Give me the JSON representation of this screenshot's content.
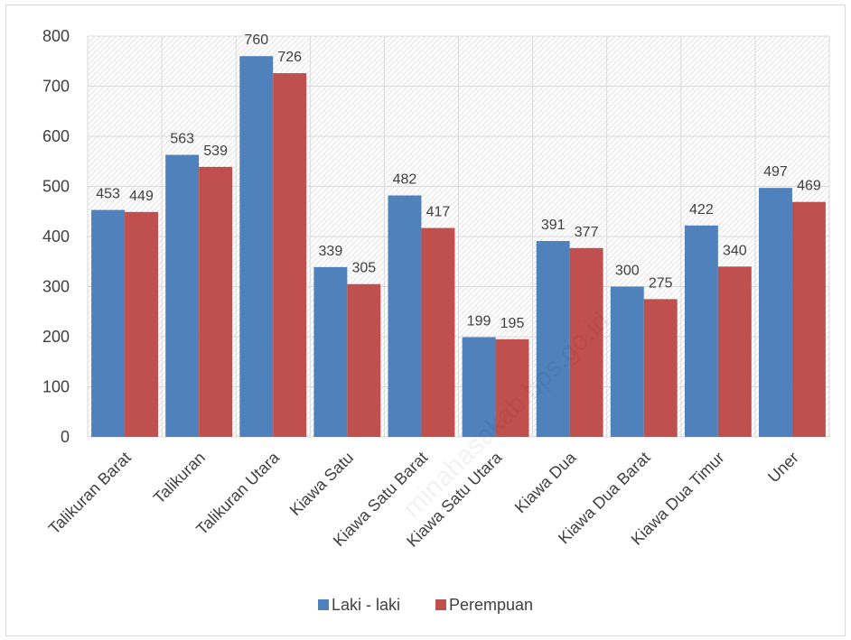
{
  "chart_data": {
    "type": "bar",
    "categories": [
      "Talikuran Barat",
      "Talikuran",
      "Talikuran Utara",
      "Kiawa Satu",
      "Kiawa Satu Barat",
      "Kiawa Satu Utara",
      "Kiawa Dua",
      "Kiawa Dua Barat",
      "Kiawa Dua Timur",
      "Uner"
    ],
    "series": [
      {
        "name": "Laki - laki",
        "values": [
          453,
          563,
          760,
          339,
          482,
          199,
          391,
          300,
          422,
          497
        ],
        "color": "#4f81bd"
      },
      {
        "name": "Perempuan",
        "values": [
          449,
          539,
          726,
          305,
          417,
          195,
          377,
          275,
          340,
          469
        ],
        "color": "#c0504d"
      }
    ],
    "title": "",
    "xlabel": "",
    "ylabel": "",
    "ylim": [
      0,
      800
    ],
    "yticks": [
      0,
      100,
      200,
      300,
      400,
      500,
      600,
      700,
      800
    ],
    "grid": true,
    "legend_position": "bottom"
  },
  "watermark": "minahasakab.bps.go.id"
}
